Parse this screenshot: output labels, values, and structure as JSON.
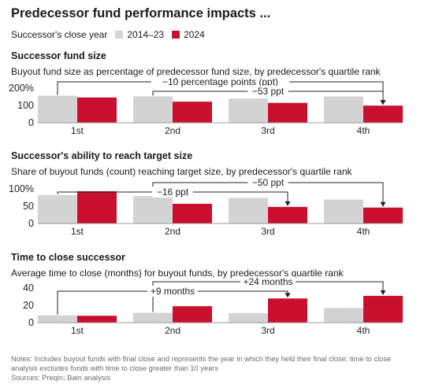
{
  "title": "Predecessor fund performance impacts ...",
  "legend": {
    "label": "Successor's close year",
    "items": [
      {
        "name": "2014–23",
        "color": "#d3d3d3"
      },
      {
        "name": "2024",
        "color": "#c8102e"
      }
    ]
  },
  "chart_data": [
    {
      "type": "bar",
      "title": "Successor fund size",
      "subtitle": "Buyout fund size as percentage of predecessor fund size, by predecessor's quartile rank",
      "categories": [
        "1st",
        "2nd",
        "3rd",
        "4th"
      ],
      "series": [
        {
          "name": "2014–23",
          "values": [
            156,
            153,
            140,
            152
          ]
        },
        {
          "name": "2024",
          "values": [
            146,
            122,
            115,
            99
          ]
        }
      ],
      "ylim": [
        0,
        200
      ],
      "yticks": [
        "0",
        "100",
        "200%"
      ],
      "annotations": [
        {
          "text": "−10 percentage points (ppt)",
          "from": 0,
          "to": 3,
          "row": 0
        },
        {
          "text": "−53 ppt",
          "from": 1,
          "to": 3,
          "row": 1
        }
      ]
    },
    {
      "type": "bar",
      "title": "Successor's ability to reach target size",
      "subtitle": "Share of buyout funds (count) reaching target size, by predecessor's quartile rank",
      "categories": [
        "1st",
        "2nd",
        "3rd",
        "4th"
      ],
      "series": [
        {
          "name": "2014–23",
          "values": [
            82,
            79,
            74,
            69
          ]
        },
        {
          "name": "2024",
          "values": [
            93,
            57,
            48,
            46
          ]
        }
      ],
      "ylim": [
        0,
        100
      ],
      "yticks": [
        "0",
        "50",
        "100%"
      ],
      "annotations": [
        {
          "text": "−50 ppt",
          "from": 1,
          "to": 3,
          "row": 0
        },
        {
          "text": "−16 ppt",
          "from": 0,
          "to": 2,
          "row": 1
        }
      ]
    },
    {
      "type": "bar",
      "title": "Time to close successor",
      "subtitle": "Average time to close (months) for buyout funds, by predecessor's quartile rank",
      "categories": [
        "1st",
        "2nd",
        "3rd",
        "4th"
      ],
      "series": [
        {
          "name": "2014–23",
          "values": [
            8.5,
            11.5,
            11,
            17
          ]
        },
        {
          "name": "2024",
          "values": [
            8,
            19,
            28,
            31
          ]
        }
      ],
      "ylim": [
        0,
        40
      ],
      "yticks": [
        "0",
        "20",
        "40"
      ],
      "annotations": [
        {
          "text": "+24 months",
          "from": 1,
          "to": 3,
          "row": 0
        },
        {
          "text": "+9 months",
          "from": 0,
          "to": 2,
          "row": 1
        }
      ]
    }
  ],
  "notes": {
    "text": "Notes: Includes buyout funds with final close and represents the year in which they held their final close; time to close analysis excludes funds with time to close greater than 10 years",
    "sources": "Sources: Preqin; Bain analysis"
  }
}
